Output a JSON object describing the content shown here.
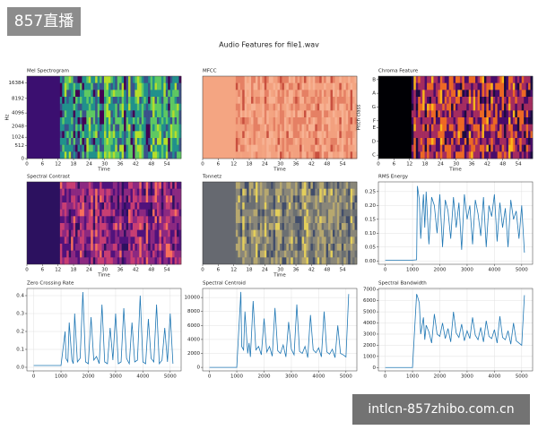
{
  "figure_title": "Audio Features for file1.wav",
  "watermarks": [
    "857直播",
    "intlcn-857zhibo.com.cn"
  ],
  "chart_data": [
    {
      "type": "heatmap",
      "title": "Mel Spectrogram",
      "xlabel": "Time",
      "ylabel": "Hz",
      "colormap": "viridis",
      "xlim": [
        0,
        59.5
      ],
      "xticks": [
        0,
        6,
        12,
        18,
        24,
        30,
        36,
        42,
        48,
        54
      ],
      "yscale": "mel",
      "ylim": [
        0,
        22050
      ],
      "yticks": [
        0,
        512,
        1024,
        2048,
        4096,
        8192,
        16384
      ]
    },
    {
      "type": "heatmap",
      "title": "MFCC",
      "xlabel": "Time",
      "colormap": "coolwarm",
      "xlim": [
        0,
        59.5
      ],
      "xticks": [
        0,
        6,
        12,
        18,
        24,
        30,
        36,
        42,
        48,
        54
      ]
    },
    {
      "type": "heatmap",
      "title": "Chroma Feature",
      "xlabel": "Time",
      "ylabel": "Pitch class",
      "colormap": "inferno",
      "xlim": [
        0,
        59.5
      ],
      "xticks": [
        0,
        6,
        12,
        18,
        24,
        30,
        36,
        42,
        48,
        54
      ],
      "ylim": [
        -0.5,
        11.5
      ],
      "yticks": [
        {
          "value": 0,
          "label": "C"
        },
        {
          "value": 2,
          "label": "D"
        },
        {
          "value": 4,
          "label": "E"
        },
        {
          "value": 5,
          "label": "F"
        },
        {
          "value": 7,
          "label": "G"
        },
        {
          "value": 9,
          "label": "A"
        },
        {
          "value": 11,
          "label": "B"
        }
      ]
    },
    {
      "type": "heatmap",
      "title": "Spectral Contrast",
      "xlabel": "Time",
      "colormap": "magma",
      "xlim": [
        0,
        59.5
      ],
      "xticks": [
        0,
        6,
        12,
        18,
        24,
        30,
        36,
        42,
        48,
        54
      ]
    },
    {
      "type": "heatmap",
      "title": "Tonnetz",
      "xlabel": "Time",
      "colormap": "cividis",
      "xlim": [
        0,
        59.5
      ],
      "xticks": [
        0,
        6,
        12,
        18,
        24,
        30,
        36,
        42,
        48,
        54
      ]
    },
    {
      "type": "line",
      "title": "RMS Energy",
      "color": "#1f77b4",
      "grid": true,
      "xlim": [
        -250,
        5400
      ],
      "xticks": [
        0,
        1000,
        2000,
        3000,
        4000,
        5000
      ],
      "ylim": [
        -0.012,
        0.285
      ],
      "yticks": [
        {
          "value": 0,
          "label": "0.00"
        },
        {
          "value": 0.05,
          "label": "0.05"
        },
        {
          "value": 0.1,
          "label": "0.10"
        },
        {
          "value": 0.15,
          "label": "0.15"
        },
        {
          "value": 0.2,
          "label": "0.20"
        },
        {
          "value": 0.25,
          "label": "0.25"
        }
      ],
      "x": [
        0,
        500,
        1000,
        1150,
        1180,
        1250,
        1300,
        1400,
        1450,
        1500,
        1600,
        1700,
        1800,
        1900,
        2000,
        2100,
        2200,
        2300,
        2400,
        2500,
        2600,
        2700,
        2800,
        2900,
        3000,
        3100,
        3200,
        3300,
        3400,
        3500,
        3600,
        3700,
        3800,
        3900,
        4000,
        4100,
        4200,
        4300,
        4400,
        4500,
        4600,
        4700,
        4800,
        4900,
        5000,
        5100
      ],
      "values": [
        0.003,
        0.003,
        0.003,
        0.004,
        0.27,
        0.22,
        0.08,
        0.24,
        0.12,
        0.25,
        0.06,
        0.23,
        0.2,
        0.1,
        0.24,
        0.05,
        0.22,
        0.18,
        0.08,
        0.23,
        0.12,
        0.21,
        0.04,
        0.24,
        0.15,
        0.2,
        0.06,
        0.22,
        0.17,
        0.09,
        0.23,
        0.05,
        0.2,
        0.16,
        0.24,
        0.07,
        0.21,
        0.12,
        0.19,
        0.05,
        0.22,
        0.15,
        0.18,
        0.08,
        0.2,
        0.03
      ]
    },
    {
      "type": "line",
      "title": "Zero Crossing Rate",
      "color": "#1f77b4",
      "grid": true,
      "xlim": [
        -250,
        5400
      ],
      "xticks": [
        0,
        1000,
        2000,
        3000,
        4000,
        5000
      ],
      "ylim": [
        -0.02,
        0.44
      ],
      "yticks": [
        {
          "value": 0,
          "label": "0.0"
        },
        {
          "value": 0.1,
          "label": "0.1"
        },
        {
          "value": 0.2,
          "label": "0.2"
        },
        {
          "value": 0.3,
          "label": "0.3"
        },
        {
          "value": 0.4,
          "label": "0.4"
        }
      ],
      "x": [
        0,
        500,
        1000,
        1150,
        1180,
        1250,
        1300,
        1400,
        1450,
        1500,
        1600,
        1700,
        1800,
        1900,
        2000,
        2100,
        2200,
        2300,
        2400,
        2500,
        2600,
        2700,
        2800,
        2900,
        3000,
        3100,
        3200,
        3300,
        3400,
        3500,
        3600,
        3700,
        3800,
        3900,
        4000,
        4100,
        4200,
        4300,
        4400,
        4500,
        4600,
        4700,
        4800,
        4900,
        5000,
        5100
      ],
      "values": [
        0.01,
        0.01,
        0.01,
        0.2,
        0.05,
        0.03,
        0.25,
        0.04,
        0.02,
        0.3,
        0.03,
        0.05,
        0.42,
        0.03,
        0.02,
        0.28,
        0.04,
        0.06,
        0.02,
        0.35,
        0.03,
        0.02,
        0.22,
        0.04,
        0.3,
        0.02,
        0.03,
        0.33,
        0.05,
        0.02,
        0.25,
        0.03,
        0.04,
        0.4,
        0.03,
        0.02,
        0.27,
        0.05,
        0.03,
        0.35,
        0.02,
        0.04,
        0.22,
        0.03,
        0.3,
        0.02
      ]
    },
    {
      "type": "line",
      "title": "Spectral Centroid",
      "color": "#1f77b4",
      "grid": true,
      "xlim": [
        -250,
        5400
      ],
      "xticks": [
        0,
        1000,
        2000,
        3000,
        4000,
        5000
      ],
      "ylim": [
        -500,
        11300
      ],
      "yticks": [
        0,
        2000,
        4000,
        6000,
        8000,
        10000
      ],
      "x": [
        0,
        500,
        1000,
        1150,
        1180,
        1250,
        1300,
        1400,
        1450,
        1500,
        1600,
        1700,
        1800,
        1900,
        2000,
        2100,
        2200,
        2300,
        2400,
        2500,
        2600,
        2700,
        2800,
        2900,
        3000,
        3100,
        3200,
        3300,
        3400,
        3500,
        3600,
        3700,
        3800,
        3900,
        4000,
        4100,
        4200,
        4300,
        4400,
        4500,
        4600,
        4700,
        4800,
        4900,
        5000,
        5100
      ],
      "values": [
        0,
        0,
        0,
        10800,
        3000,
        2500,
        8000,
        2000,
        3500,
        1500,
        9500,
        2500,
        3000,
        1800,
        7000,
        2200,
        3000,
        1600,
        8500,
        2400,
        2000,
        3200,
        1500,
        6500,
        2600,
        1800,
        9000,
        2300,
        2000,
        3000,
        1400,
        7500,
        2500,
        2100,
        2800,
        1500,
        8000,
        2200,
        1900,
        2600,
        1400,
        6000,
        2000,
        1800,
        1500,
        10500
      ]
    },
    {
      "type": "line",
      "title": "Spectral Bandwidth",
      "color": "#1f77b4",
      "grid": true,
      "xlim": [
        -250,
        5400
      ],
      "xticks": [
        0,
        1000,
        2000,
        3000,
        4000,
        5000
      ],
      "ylim": [
        -300,
        7100
      ],
      "yticks": [
        0,
        1000,
        2000,
        3000,
        4000,
        5000,
        6000,
        7000
      ],
      "x": [
        0,
        500,
        1000,
        1150,
        1180,
        1250,
        1300,
        1400,
        1450,
        1500,
        1600,
        1700,
        1800,
        1900,
        2000,
        2100,
        2200,
        2300,
        2400,
        2500,
        2600,
        2700,
        2800,
        2900,
        3000,
        3100,
        3200,
        3300,
        3400,
        3500,
        3600,
        3700,
        3800,
        3900,
        4000,
        4100,
        4200,
        4300,
        4400,
        4500,
        4600,
        4700,
        4800,
        4900,
        5000,
        5100
      ],
      "values": [
        0,
        0,
        0,
        6600,
        6400,
        5800,
        3000,
        4500,
        2500,
        3800,
        3200,
        2200,
        4800,
        3000,
        2800,
        4000,
        2600,
        3500,
        2300,
        5000,
        3100,
        2700,
        3900,
        2400,
        3300,
        2600,
        4500,
        2900,
        2500,
        3600,
        2300,
        4200,
        2800,
        2600,
        3400,
        2200,
        4600,
        2700,
        2500,
        3300,
        2100,
        4000,
        2400,
        2200,
        2000,
        6500
      ]
    }
  ]
}
